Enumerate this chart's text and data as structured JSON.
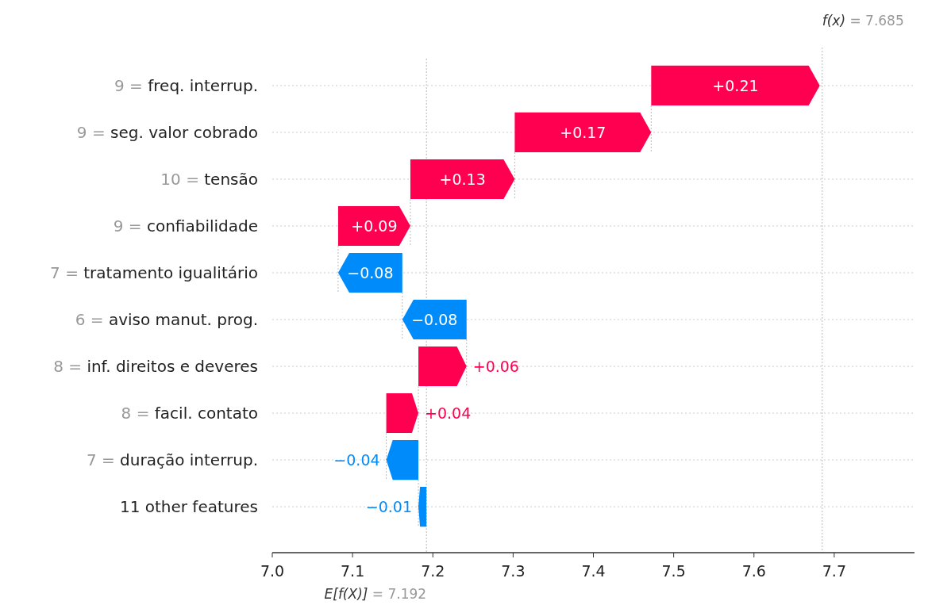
{
  "chart_data": {
    "type": "bar",
    "orientation": "horizontal",
    "categories": [
      "9 = freq. interrup.",
      "9 = seg. valor cobrado",
      "10 = tensão",
      "9 = confiabilidade",
      "7 = tratamento igualitário",
      "6 = aviso manut. prog.",
      "8 = inf. direitos e deveres",
      "8 = facil. contato",
      "7 = duração interrup.",
      "11 other features"
    ],
    "values": [
      0.21,
      0.17,
      0.13,
      0.09,
      -0.08,
      -0.08,
      0.06,
      0.04,
      -0.04,
      -0.01
    ],
    "base": [
      7.472,
      7.302,
      7.172,
      7.082,
      7.162,
      7.242,
      7.182,
      7.142,
      7.182,
      7.192
    ],
    "colors": [
      "#ff0051",
      "#ff0051",
      "#ff0051",
      "#ff0051",
      "#008bfb",
      "#008bfb",
      "#ff0051",
      "#ff0051",
      "#008bfb",
      "#008bfb"
    ],
    "value_labels": [
      "+0.21",
      "+0.17",
      "+0.13",
      "+0.09",
      "−0.08",
      "−0.08",
      "+0.06",
      "+0.04",
      "−0.04",
      "−0.01"
    ],
    "xlim": [
      7.0,
      7.8
    ],
    "xticks": [
      {
        "value": 7.0,
        "label": "7.0"
      },
      {
        "value": 7.1,
        "label": "7.1"
      },
      {
        "value": 7.2,
        "label": "7.2"
      },
      {
        "value": 7.3,
        "label": "7.3"
      },
      {
        "value": 7.4,
        "label": "7.4"
      },
      {
        "value": 7.5,
        "label": "7.5"
      },
      {
        "value": 7.6,
        "label": "7.6"
      },
      {
        "value": 7.7,
        "label": "7.7"
      }
    ],
    "grid": "y",
    "ref_lines": [
      {
        "axis": "x",
        "value": 7.685,
        "label": "f(x) = 7.685"
      },
      {
        "axis": "x",
        "value": 7.192,
        "label": "E[f(X)] = 7.192"
      }
    ]
  }
}
